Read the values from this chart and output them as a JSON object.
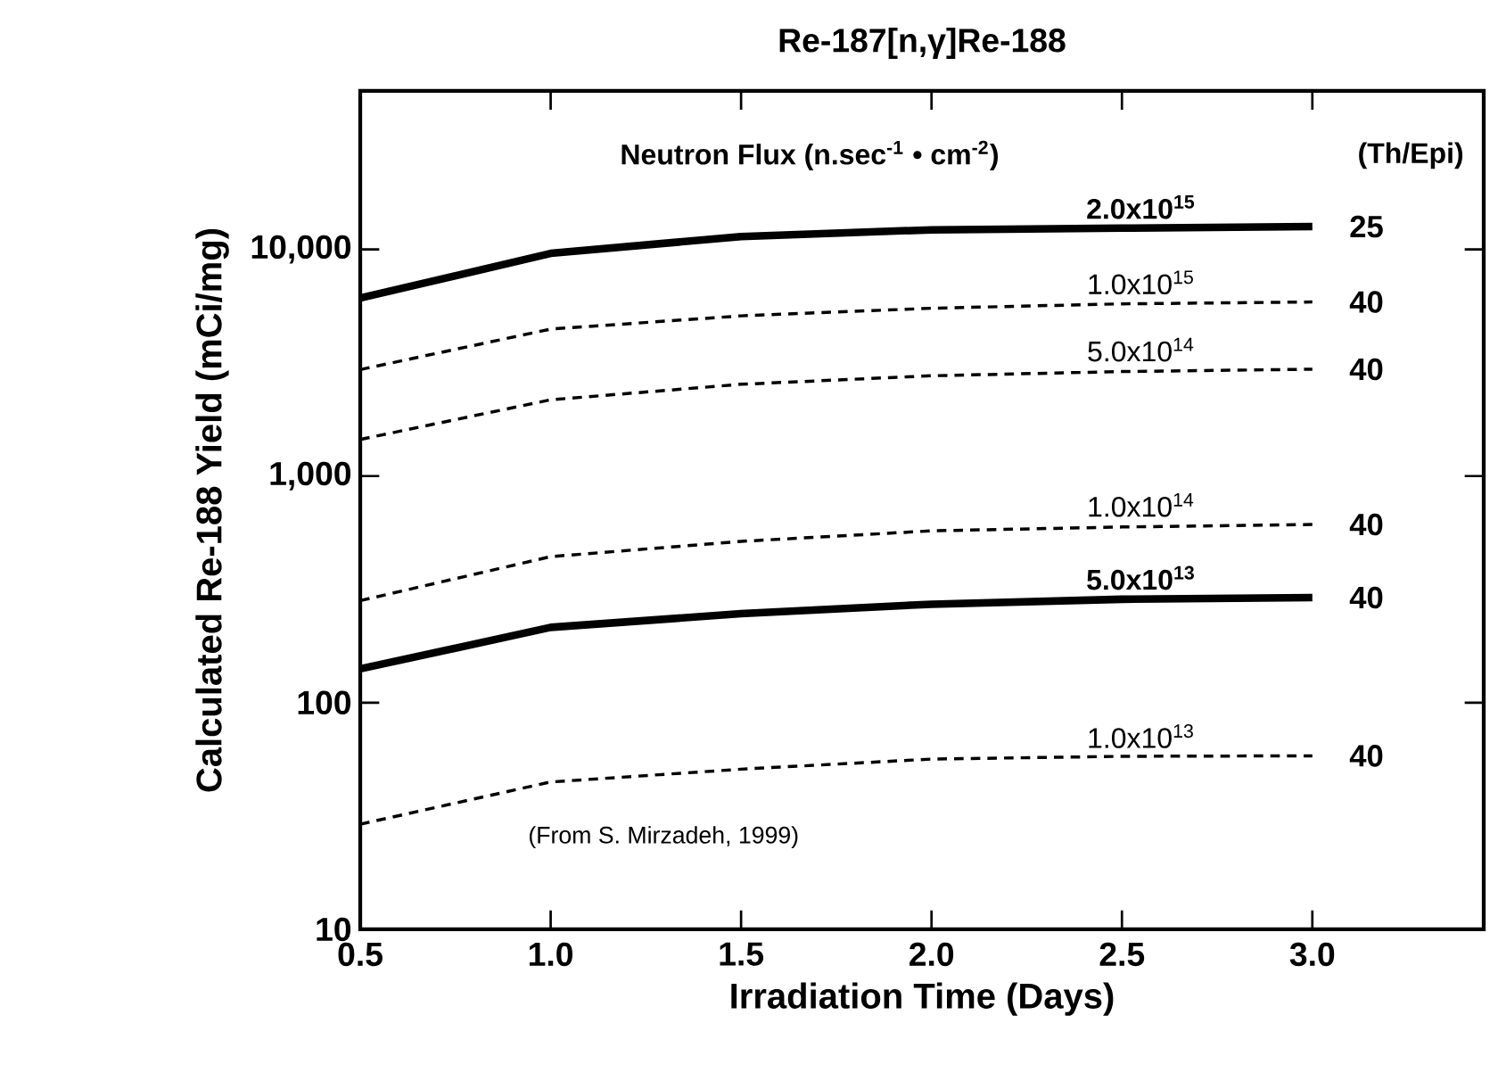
{
  "chart_data": {
    "type": "line",
    "title": "Re-187[n,γ]Re-188",
    "xlabel": "Irradiation Time (Days)",
    "ylabel": "Calculated Re-188 Yield (mCi/mg)",
    "legend_title": "Neutron Flux (n.sec$^{-1}$ • cm$^{-2}$)",
    "log": "y",
    "xlim": [
      0.5,
      3.45
    ],
    "ylim": [
      10,
      50000
    ],
    "xticks": [
      0.5,
      {
        "value": 1,
        "label": "1.0"
      },
      1.5,
      {
        "value": 2,
        "label": "2.0"
      },
      2.5,
      {
        "value": 3,
        "label": "3.0"
      }
    ],
    "yticks": [
      10,
      100,
      {
        "value": 1000,
        "label": "1,000"
      },
      {
        "value": 10000,
        "label": "10,000"
      }
    ],
    "x": [
      0.5,
      1.0,
      1.5,
      2.0,
      2.5,
      3.0
    ],
    "series": [
      {
        "name": "2.0x10$^{15}$",
        "color": "#000000",
        "line_style": "solid",
        "values": [
          6100,
          9600,
          11400,
          12200,
          12400,
          12600
        ]
      },
      {
        "name": "1.0x10$^{15}$",
        "color": "#000000",
        "line_style": "dashed",
        "values": [
          2950,
          4450,
          5090,
          5500,
          5750,
          5860
        ]
      },
      {
        "name": "5.0x10$^{14}$",
        "color": "#000000",
        "line_style": "dashed",
        "values": [
          1450,
          2170,
          2540,
          2770,
          2890,
          2960
        ]
      },
      {
        "name": "1.0x10$^{14}$",
        "color": "#000000",
        "line_style": "dashed",
        "values": [
          282,
          441,
          515,
          573,
          596,
          611
        ]
      },
      {
        "name": "5.0x10$^{13}$",
        "color": "#000000",
        "line_style": "solid",
        "values": [
          141,
          215,
          247,
          272,
          286,
          291
        ]
      },
      {
        "name": "1.0x10$^{13}$",
        "color": "#000000",
        "line_style": "dashed",
        "values": [
          29.1,
          44.7,
          50.9,
          56.4,
          58,
          58.3
        ]
      }
    ],
    "annotations": [
      "(Th/Epi)",
      "(From S. Mirzadeh, 1999)",
      "25",
      "40",
      "40",
      "40",
      "40",
      "40"
    ]
  }
}
